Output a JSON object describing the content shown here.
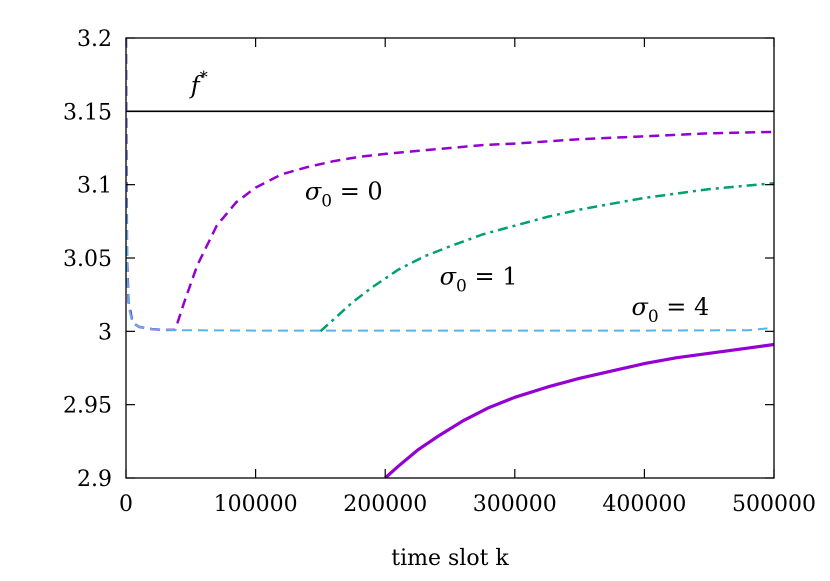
{
  "chart_data": {
    "type": "line",
    "title": "",
    "xlabel": "time slot k",
    "ylabel": "",
    "xlim": [
      0,
      500000
    ],
    "ylim": [
      2.9,
      3.2
    ],
    "grid": false,
    "legend": "none",
    "x_ticks": [
      {
        "value": 0,
        "label": "0"
      },
      {
        "value": 100000,
        "label": "100000"
      },
      {
        "value": 200000,
        "label": "200000"
      },
      {
        "value": 300000,
        "label": "300000"
      },
      {
        "value": 400000,
        "label": "400000"
      },
      {
        "value": 500000,
        "label": "500000"
      }
    ],
    "y_ticks": [
      {
        "value": 2.9,
        "label": "2.9"
      },
      {
        "value": 2.95,
        "label": "2.95"
      },
      {
        "value": 3.0,
        "label": "3"
      },
      {
        "value": 3.05,
        "label": "3.05"
      },
      {
        "value": 3.1,
        "label": "3.1"
      },
      {
        "value": 3.15,
        "label": "3.15"
      },
      {
        "value": 3.2,
        "label": "3.2"
      }
    ],
    "series": [
      {
        "key": "fstar",
        "color": "#000000",
        "style": "solid",
        "width": 1.6,
        "x": [
          0,
          500000
        ],
        "y": [
          3.15,
          3.15
        ]
      },
      {
        "key": "sigma0",
        "color": "#9400D3",
        "style": "dashed",
        "width": 2.5,
        "x": [
          0,
          800,
          2000,
          5000,
          10000,
          20000,
          30000,
          38000,
          45000,
          55000,
          70000,
          85000,
          100000,
          120000,
          140000,
          160000,
          180000,
          200000,
          225000,
          250000,
          275000,
          300000,
          350000,
          400000,
          450000,
          500000
        ],
        "y": [
          3.2,
          3.05,
          3.02,
          3.006,
          3.003,
          3.0015,
          3.001,
          3.001,
          3.02,
          3.045,
          3.072,
          3.088,
          3.098,
          3.107,
          3.112,
          3.116,
          3.119,
          3.121,
          3.123,
          3.125,
          3.127,
          3.128,
          3.131,
          3.133,
          3.135,
          3.136
        ]
      },
      {
        "key": "sigma1",
        "color": "#009E73",
        "style": "dashdot",
        "width": 2.5,
        "x": [
          150000,
          160000,
          175000,
          190000,
          210000,
          230000,
          250000,
          275000,
          300000,
          325000,
          350000,
          375000,
          400000,
          425000,
          450000,
          475000,
          500000
        ],
        "y": [
          3.0,
          3.008,
          3.02,
          3.03,
          3.042,
          3.051,
          3.058,
          3.066,
          3.072,
          3.078,
          3.083,
          3.087,
          3.091,
          3.094,
          3.097,
          3.099,
          3.101
        ]
      },
      {
        "key": "sigma4",
        "color": "#56B4E9",
        "style": "dashed",
        "width": 2.0,
        "x": [
          0,
          400,
          1000,
          2500,
          5000,
          10000,
          20000,
          40000,
          100000,
          200000,
          300000,
          400000,
          480000,
          495000
        ],
        "y": [
          3.2,
          3.1,
          3.04,
          3.015,
          3.006,
          3.003,
          3.0015,
          3.0008,
          3.0005,
          3.0005,
          3.0005,
          3.0005,
          3.0008,
          3.002
        ]
      },
      {
        "key": "solid",
        "color": "#9400D3",
        "style": "solid",
        "width": 3.2,
        "x": [
          200000,
          210000,
          225000,
          240000,
          260000,
          280000,
          300000,
          325000,
          350000,
          375000,
          400000,
          425000,
          450000,
          475000,
          500000
        ],
        "y": [
          2.9,
          2.908,
          2.919,
          2.928,
          2.939,
          2.948,
          2.955,
          2.962,
          2.968,
          2.973,
          2.978,
          2.982,
          2.985,
          2.988,
          2.991
        ]
      }
    ],
    "annotations": [
      {
        "key": "fstar",
        "label": "f",
        "sup": "*",
        "x": 50000,
        "y": 3.162
      },
      {
        "key": "s0",
        "label": "σ",
        "sub": "0",
        "eq": " = 0",
        "x": 138000,
        "y": 3.09
      },
      {
        "key": "s1",
        "label": "σ",
        "sub": "0",
        "eq": " = 1",
        "x": 242000,
        "y": 3.032
      },
      {
        "key": "s4",
        "label": "σ",
        "sub": "0",
        "eq": " = 4",
        "x": 390000,
        "y": 3.011
      }
    ]
  }
}
